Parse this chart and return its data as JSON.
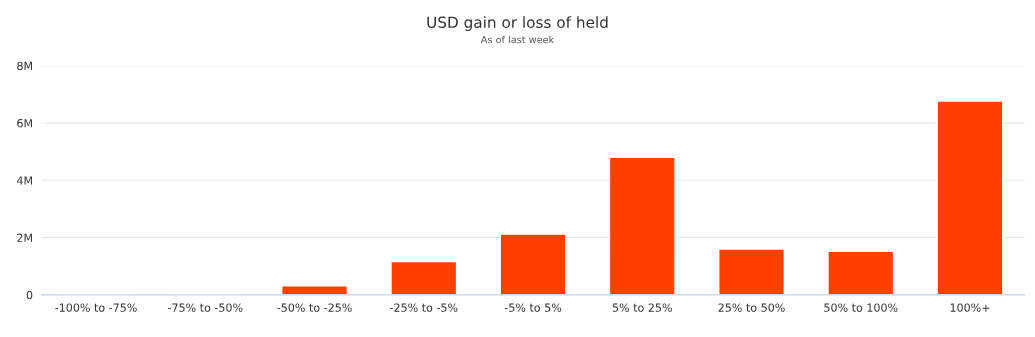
{
  "chart_data": {
    "type": "bar",
    "title": "USD gain or loss of held",
    "subtitle": "As of last week",
    "categories": [
      "-100% to -75%",
      "-75% to -50%",
      "-50% to -25%",
      "-25% to -5%",
      "-5% to 5%",
      "5% to 25%",
      "25% to 50%",
      "50% to 100%",
      "100%+"
    ],
    "values": [
      30000,
      20000,
      320000,
      1160000,
      2120000,
      4800000,
      1600000,
      1520000,
      6770000
    ],
    "color": "#ff3f00",
    "ylim": [
      0,
      8000000
    ],
    "yticks": [
      {
        "value": 0,
        "label": "0"
      },
      {
        "value": 2000000,
        "label": "2M"
      },
      {
        "value": 4000000,
        "label": "4M"
      },
      {
        "value": 6000000,
        "label": "6M"
      },
      {
        "value": 8000000,
        "label": "8M"
      }
    ],
    "grid": "y",
    "legend": false
  }
}
